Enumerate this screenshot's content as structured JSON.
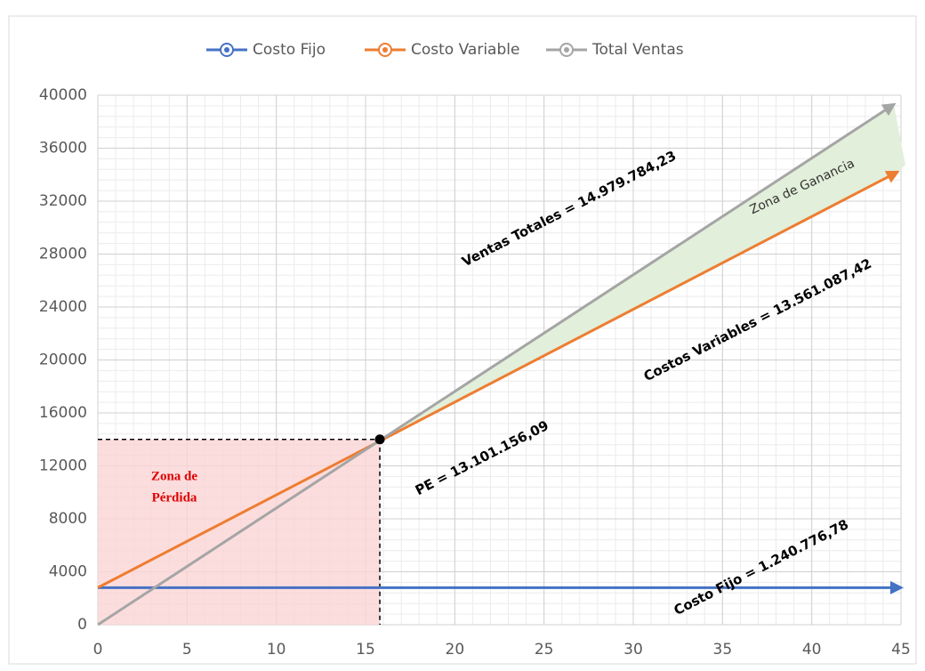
{
  "chart_data": {
    "type": "line",
    "series": [
      {
        "name": "Costo Fijo",
        "color": "#4472c4",
        "x": [
          0,
          45
        ],
        "values": [
          2800,
          2800
        ]
      },
      {
        "name": "Costo Variable",
        "color": "#ed7d31",
        "x": [
          0,
          44.8
        ],
        "values": [
          2800,
          34200
        ]
      },
      {
        "name": "Total Ventas",
        "color": "#a5a5a5",
        "x": [
          0,
          44.6
        ],
        "values": [
          0,
          39300
        ]
      }
    ],
    "break_even": {
      "x": 15.8,
      "y": 14000
    },
    "xlim": [
      0,
      45
    ],
    "xticks": [
      0,
      5,
      10,
      15,
      20,
      25,
      30,
      35,
      40,
      45
    ],
    "ylim": [
      0,
      40000
    ],
    "yticks": [
      0,
      4000,
      8000,
      12000,
      16000,
      20000,
      24000,
      28000,
      32000,
      36000,
      40000
    ],
    "grid": true,
    "legend": "top",
    "annotations": [
      "Ventas Totales = 14.979.784,23",
      "Zona de Ganancia",
      "Costos Variables = 13.561.087,42",
      "PE = 13.101.156,09",
      "Costo Fijo = 1.240.776,78",
      "Zona de",
      "Pérdida"
    ]
  }
}
